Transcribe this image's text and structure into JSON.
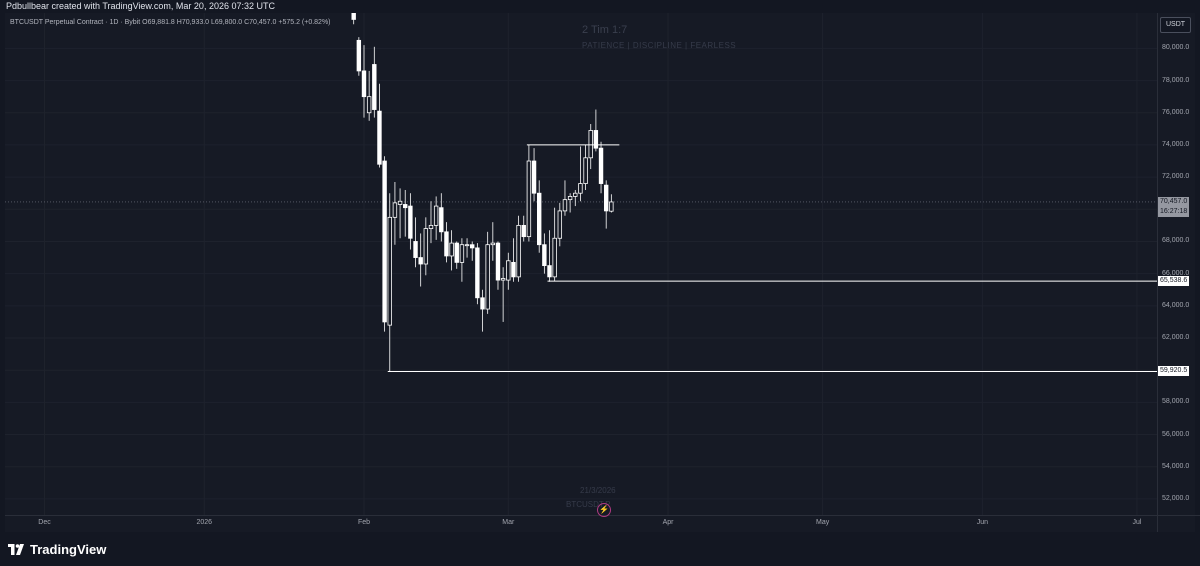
{
  "header": {
    "credit": "Pdbullbear created with TradingView.com, Mar 20, 2026 07:32 UTC"
  },
  "legend": {
    "symbol_line": "BTCUSDT Perpetual Contract · 1D · Bybit  O69,881.8  H70,933.0  L69,800.0  C70,457.0  +575.2 (+0.82%)"
  },
  "watermark": {
    "title": "2 Tim 1:7",
    "subtitle": "PATIENCE  |  DISCIPLINE  |  FEARLESS",
    "date": "21/3/2026",
    "symbol": "BTCUSDT.P"
  },
  "price_axis": {
    "currency": "USDT",
    "ticks": [
      "80,000.0",
      "78,000.0",
      "76,000.0",
      "74,000.0",
      "72,000.0",
      "70,000.0",
      "68,000.0",
      "66,000.0",
      "64,000.0",
      "62,000.0",
      "60,000.0",
      "58,000.0",
      "56,000.0",
      "54,000.0",
      "52,000.0"
    ],
    "last_price": "70,457.0",
    "countdown": "16:27:18",
    "level_labels": [
      "65,538.6",
      "59,920.5"
    ]
  },
  "time_axis": {
    "ticks": [
      "Dec",
      "2026",
      "Feb",
      "Mar",
      "Apr",
      "May",
      "Jun",
      "Jul"
    ]
  },
  "brand": {
    "logo_text": "TradingView"
  },
  "colors": {
    "background": "#161a25",
    "candle": "#ffffff",
    "level_line": "#ffffff"
  },
  "chart_data": {
    "type": "candlestick",
    "symbol": "BTCUSDT",
    "interval": "1D",
    "ylim": [
      51000,
      82200
    ],
    "last_close": 70457.0,
    "horizontal_levels": [
      74000,
      65538.6,
      59920.5
    ],
    "candles": [
      {
        "date": "2026-01-30",
        "o": 84500,
        "h": 84500,
        "l": 81500,
        "c": 81800
      },
      {
        "date": "2026-01-31",
        "o": 80500,
        "h": 80700,
        "l": 78300,
        "c": 78600
      },
      {
        "date": "2026-02-01",
        "o": 78600,
        "h": 80200,
        "l": 75700,
        "c": 77000
      },
      {
        "date": "2026-02-02",
        "o": 76000,
        "h": 78600,
        "l": 75500,
        "c": 77000
      },
      {
        "date": "2026-02-03",
        "o": 79000,
        "h": 80100,
        "l": 75700,
        "c": 76200
      },
      {
        "date": "2026-02-04",
        "o": 76100,
        "h": 77800,
        "l": 72600,
        "c": 72800
      },
      {
        "date": "2026-02-05",
        "o": 73000,
        "h": 73300,
        "l": 62400,
        "c": 63000
      },
      {
        "date": "2026-02-06",
        "o": 62800,
        "h": 71000,
        "l": 59920,
        "c": 69500
      },
      {
        "date": "2026-02-07",
        "o": 69500,
        "h": 71700,
        "l": 67800,
        "c": 70400
      },
      {
        "date": "2026-02-08",
        "o": 70300,
        "h": 71300,
        "l": 68200,
        "c": 70500
      },
      {
        "date": "2026-02-09",
        "o": 70300,
        "h": 71200,
        "l": 68300,
        "c": 70100
      },
      {
        "date": "2026-02-10",
        "o": 70200,
        "h": 71000,
        "l": 67500,
        "c": 68200
      },
      {
        "date": "2026-02-11",
        "o": 68000,
        "h": 69500,
        "l": 66400,
        "c": 67000
      },
      {
        "date": "2026-02-12",
        "o": 67000,
        "h": 68500,
        "l": 65200,
        "c": 66600
      },
      {
        "date": "2026-02-13",
        "o": 66600,
        "h": 69500,
        "l": 65900,
        "c": 68800
      },
      {
        "date": "2026-02-14",
        "o": 68800,
        "h": 70500,
        "l": 67900,
        "c": 69000
      },
      {
        "date": "2026-02-15",
        "o": 69000,
        "h": 70800,
        "l": 68100,
        "c": 70200
      },
      {
        "date": "2026-02-16",
        "o": 70100,
        "h": 71000,
        "l": 68000,
        "c": 68600
      },
      {
        "date": "2026-02-17",
        "o": 68600,
        "h": 69200,
        "l": 66700,
        "c": 67100
      },
      {
        "date": "2026-02-18",
        "o": 67100,
        "h": 68700,
        "l": 66200,
        "c": 67900
      },
      {
        "date": "2026-02-19",
        "o": 67900,
        "h": 68000,
        "l": 66300,
        "c": 66700
      },
      {
        "date": "2026-02-20",
        "o": 66700,
        "h": 68200,
        "l": 65500,
        "c": 67800
      },
      {
        "date": "2026-02-21",
        "o": 67800,
        "h": 68200,
        "l": 67000,
        "c": 67800
      },
      {
        "date": "2026-02-22",
        "o": 67800,
        "h": 68000,
        "l": 66800,
        "c": 67600
      },
      {
        "date": "2026-02-23",
        "o": 67600,
        "h": 67900,
        "l": 64100,
        "c": 64500
      },
      {
        "date": "2026-02-24",
        "o": 64500,
        "h": 65000,
        "l": 62400,
        "c": 63800
      },
      {
        "date": "2026-02-25",
        "o": 63800,
        "h": 68600,
        "l": 63500,
        "c": 67800
      },
      {
        "date": "2026-02-26",
        "o": 67800,
        "h": 69200,
        "l": 66800,
        "c": 67900
      },
      {
        "date": "2026-02-27",
        "o": 67900,
        "h": 68000,
        "l": 65000,
        "c": 65600
      },
      {
        "date": "2026-02-28",
        "o": 65600,
        "h": 66400,
        "l": 63000,
        "c": 65700
      },
      {
        "date": "2026-03-01",
        "o": 65600,
        "h": 67300,
        "l": 65000,
        "c": 66800
      },
      {
        "date": "2026-03-02",
        "o": 66700,
        "h": 68200,
        "l": 65500,
        "c": 65800
      },
      {
        "date": "2026-03-03",
        "o": 65800,
        "h": 69600,
        "l": 65500,
        "c": 69000
      },
      {
        "date": "2026-03-04",
        "o": 69000,
        "h": 69600,
        "l": 68000,
        "c": 68300
      },
      {
        "date": "2026-03-05",
        "o": 68300,
        "h": 74000,
        "l": 68000,
        "c": 73000
      },
      {
        "date": "2026-03-06",
        "o": 73000,
        "h": 73800,
        "l": 70500,
        "c": 71000
      },
      {
        "date": "2026-03-07",
        "o": 71000,
        "h": 71800,
        "l": 67300,
        "c": 67800
      },
      {
        "date": "2026-03-08",
        "o": 67800,
        "h": 68500,
        "l": 66000,
        "c": 66500
      },
      {
        "date": "2026-03-09",
        "o": 66500,
        "h": 68700,
        "l": 65500,
        "c": 65800
      },
      {
        "date": "2026-03-10",
        "o": 65800,
        "h": 70100,
        "l": 65538,
        "c": 68200
      },
      {
        "date": "2026-03-11",
        "o": 68200,
        "h": 70400,
        "l": 67700,
        "c": 69900
      },
      {
        "date": "2026-03-12",
        "o": 69900,
        "h": 71800,
        "l": 69600,
        "c": 70600
      },
      {
        "date": "2026-03-13",
        "o": 70600,
        "h": 71000,
        "l": 69800,
        "c": 70800
      },
      {
        "date": "2026-03-14",
        "o": 70800,
        "h": 71200,
        "l": 70200,
        "c": 71000
      },
      {
        "date": "2026-03-15",
        "o": 71000,
        "h": 73900,
        "l": 70500,
        "c": 71600
      },
      {
        "date": "2026-03-16",
        "o": 71600,
        "h": 74000,
        "l": 71200,
        "c": 73200
      },
      {
        "date": "2026-03-17",
        "o": 73200,
        "h": 75300,
        "l": 72500,
        "c": 74900
      },
      {
        "date": "2026-03-18",
        "o": 74900,
        "h": 76200,
        "l": 73600,
        "c": 73800
      },
      {
        "date": "2026-03-19",
        "o": 73800,
        "h": 74200,
        "l": 71000,
        "c": 71600
      },
      {
        "date": "2026-03-20",
        "o": 71500,
        "h": 71800,
        "l": 68800,
        "c": 69900
      },
      {
        "date": "2026-03-21",
        "o": 69881.8,
        "h": 70933.0,
        "l": 69800.0,
        "c": 70457.0
      }
    ]
  }
}
